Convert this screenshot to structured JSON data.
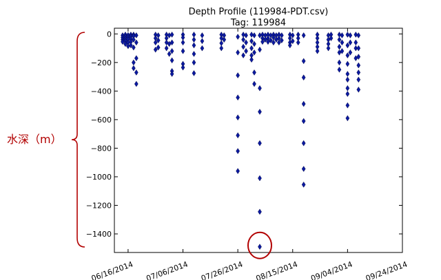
{
  "chart_data": {
    "type": "scatter",
    "title": "Depth Profile (119984-PDT.csv)",
    "subtitle": "Tag: 119984",
    "xlabel": "",
    "ylabel": "",
    "xlim": [
      "2014-06-11",
      "2014-09-24"
    ],
    "ylim": [
      -1530,
      40
    ],
    "x_ticks": [
      "06/16/2014",
      "07/06/2014",
      "07/26/2014",
      "08/15/2014",
      "09/04/2014",
      "09/24/2014"
    ],
    "y_ticks": [
      0,
      -200,
      -400,
      -600,
      -800,
      -1000,
      -1200,
      -1400
    ],
    "marker": "diamond",
    "marker_color": "#0b1aa0",
    "grid": false,
    "series": [
      {
        "points": [
          {
            "x": "2014-06-14",
            "y": -10
          },
          {
            "x": "2014-06-14",
            "y": -25
          },
          {
            "x": "2014-06-14",
            "y": -40
          },
          {
            "x": "2014-06-14",
            "y": -55
          },
          {
            "x": "2014-06-15",
            "y": -5
          },
          {
            "x": "2014-06-15",
            "y": -20
          },
          {
            "x": "2014-06-15",
            "y": -35
          },
          {
            "x": "2014-06-15",
            "y": -50
          },
          {
            "x": "2014-06-15",
            "y": -70
          },
          {
            "x": "2014-06-16",
            "y": -8
          },
          {
            "x": "2014-06-16",
            "y": -22
          },
          {
            "x": "2014-06-16",
            "y": -38
          },
          {
            "x": "2014-06-16",
            "y": -60
          },
          {
            "x": "2014-06-16",
            "y": -85
          },
          {
            "x": "2014-06-17",
            "y": -5
          },
          {
            "x": "2014-06-17",
            "y": -18
          },
          {
            "x": "2014-06-17",
            "y": -35
          },
          {
            "x": "2014-06-17",
            "y": -55
          },
          {
            "x": "2014-06-17",
            "y": -80
          },
          {
            "x": "2014-06-18",
            "y": -5
          },
          {
            "x": "2014-06-18",
            "y": -15
          },
          {
            "x": "2014-06-18",
            "y": -40
          },
          {
            "x": "2014-06-18",
            "y": -95
          },
          {
            "x": "2014-06-18",
            "y": -200
          },
          {
            "x": "2014-06-18",
            "y": -240
          },
          {
            "x": "2014-06-19",
            "y": -10
          },
          {
            "x": "2014-06-19",
            "y": -60
          },
          {
            "x": "2014-06-19",
            "y": -170
          },
          {
            "x": "2014-06-19",
            "y": -270
          },
          {
            "x": "2014-06-19",
            "y": -350
          },
          {
            "x": "2014-06-26",
            "y": -5
          },
          {
            "x": "2014-06-26",
            "y": -30
          },
          {
            "x": "2014-06-26",
            "y": -60
          },
          {
            "x": "2014-06-26",
            "y": -110
          },
          {
            "x": "2014-06-27",
            "y": -10
          },
          {
            "x": "2014-06-27",
            "y": -45
          },
          {
            "x": "2014-06-27",
            "y": -95
          },
          {
            "x": "2014-06-30",
            "y": -5
          },
          {
            "x": "2014-06-30",
            "y": -30
          },
          {
            "x": "2014-06-30",
            "y": -60
          },
          {
            "x": "2014-06-30",
            "y": -100
          },
          {
            "x": "2014-07-01",
            "y": -10
          },
          {
            "x": "2014-07-01",
            "y": -70
          },
          {
            "x": "2014-07-01",
            "y": -140
          },
          {
            "x": "2014-07-02",
            "y": -5
          },
          {
            "x": "2014-07-02",
            "y": -60
          },
          {
            "x": "2014-07-02",
            "y": -120
          },
          {
            "x": "2014-07-02",
            "y": -185
          },
          {
            "x": "2014-07-02",
            "y": -260
          },
          {
            "x": "2014-07-02",
            "y": -280
          },
          {
            "x": "2014-07-06",
            "y": -5
          },
          {
            "x": "2014-07-06",
            "y": -25
          },
          {
            "x": "2014-07-06",
            "y": -60
          },
          {
            "x": "2014-07-06",
            "y": -120
          },
          {
            "x": "2014-07-06",
            "y": -210
          },
          {
            "x": "2014-07-06",
            "y": -235
          },
          {
            "x": "2014-07-10",
            "y": -5
          },
          {
            "x": "2014-07-10",
            "y": -40
          },
          {
            "x": "2014-07-10",
            "y": -80
          },
          {
            "x": "2014-07-10",
            "y": -140
          },
          {
            "x": "2014-07-10",
            "y": -200
          },
          {
            "x": "2014-07-10",
            "y": -275
          },
          {
            "x": "2014-07-13",
            "y": -10
          },
          {
            "x": "2014-07-13",
            "y": -50
          },
          {
            "x": "2014-07-13",
            "y": -100
          },
          {
            "x": "2014-07-20",
            "y": -5
          },
          {
            "x": "2014-07-20",
            "y": -30
          },
          {
            "x": "2014-07-20",
            "y": -65
          },
          {
            "x": "2014-07-20",
            "y": -100
          },
          {
            "x": "2014-07-21",
            "y": -10
          },
          {
            "x": "2014-07-21",
            "y": -40
          },
          {
            "x": "2014-07-26",
            "y": -20
          },
          {
            "x": "2014-07-26",
            "y": -130
          },
          {
            "x": "2014-07-26",
            "y": -290
          },
          {
            "x": "2014-07-26",
            "y": -445
          },
          {
            "x": "2014-07-26",
            "y": -585
          },
          {
            "x": "2014-07-26",
            "y": -710
          },
          {
            "x": "2014-07-26",
            "y": -820
          },
          {
            "x": "2014-07-26",
            "y": -960
          },
          {
            "x": "2014-07-28",
            "y": -5
          },
          {
            "x": "2014-07-28",
            "y": -40
          },
          {
            "x": "2014-07-28",
            "y": -90
          },
          {
            "x": "2014-07-28",
            "y": -150
          },
          {
            "x": "2014-07-29",
            "y": -10
          },
          {
            "x": "2014-07-29",
            "y": -60
          },
          {
            "x": "2014-07-29",
            "y": -120
          },
          {
            "x": "2014-07-31",
            "y": -5
          },
          {
            "x": "2014-07-31",
            "y": -50
          },
          {
            "x": "2014-07-31",
            "y": -100
          },
          {
            "x": "2014-07-31",
            "y": -150
          },
          {
            "x": "2014-07-31",
            "y": -180
          },
          {
            "x": "2014-08-01",
            "y": -10
          },
          {
            "x": "2014-08-01",
            "y": -70
          },
          {
            "x": "2014-08-01",
            "y": -130
          },
          {
            "x": "2014-08-01",
            "y": -270
          },
          {
            "x": "2014-08-01",
            "y": -350
          },
          {
            "x": "2014-08-03",
            "y": -10
          },
          {
            "x": "2014-08-03",
            "y": -110
          },
          {
            "x": "2014-08-03",
            "y": -380
          },
          {
            "x": "2014-08-03",
            "y": -545
          },
          {
            "x": "2014-08-03",
            "y": -765
          },
          {
            "x": "2014-08-03",
            "y": -1010
          },
          {
            "x": "2014-08-03",
            "y": -1245
          },
          {
            "x": "2014-08-03",
            "y": -1490
          },
          {
            "x": "2014-08-04",
            "y": -5
          },
          {
            "x": "2014-08-04",
            "y": -30
          },
          {
            "x": "2014-08-04",
            "y": -55
          },
          {
            "x": "2014-08-05",
            "y": -10
          },
          {
            "x": "2014-08-05",
            "y": -40
          },
          {
            "x": "2014-08-06",
            "y": -5
          },
          {
            "x": "2014-08-06",
            "y": -30
          },
          {
            "x": "2014-08-06",
            "y": -55
          },
          {
            "x": "2014-08-07",
            "y": -10
          },
          {
            "x": "2014-08-07",
            "y": -45
          },
          {
            "x": "2014-08-08",
            "y": -5
          },
          {
            "x": "2014-08-08",
            "y": -25
          },
          {
            "x": "2014-08-08",
            "y": -60
          },
          {
            "x": "2014-08-09",
            "y": -10
          },
          {
            "x": "2014-08-09",
            "y": -40
          },
          {
            "x": "2014-08-10",
            "y": -5
          },
          {
            "x": "2014-08-10",
            "y": -30
          },
          {
            "x": "2014-08-10",
            "y": -60
          },
          {
            "x": "2014-08-11",
            "y": -10
          },
          {
            "x": "2014-08-11",
            "y": -45
          },
          {
            "x": "2014-08-14",
            "y": -5
          },
          {
            "x": "2014-08-14",
            "y": -30
          },
          {
            "x": "2014-08-14",
            "y": -60
          },
          {
            "x": "2014-08-14",
            "y": -80
          },
          {
            "x": "2014-08-15",
            "y": -10
          },
          {
            "x": "2014-08-15",
            "y": -50
          },
          {
            "x": "2014-08-17",
            "y": -5
          },
          {
            "x": "2014-08-17",
            "y": -30
          },
          {
            "x": "2014-08-17",
            "y": -60
          },
          {
            "x": "2014-08-19",
            "y": -10
          },
          {
            "x": "2014-08-19",
            "y": -190
          },
          {
            "x": "2014-08-19",
            "y": -305
          },
          {
            "x": "2014-08-19",
            "y": -490
          },
          {
            "x": "2014-08-19",
            "y": -610
          },
          {
            "x": "2014-08-19",
            "y": -765
          },
          {
            "x": "2014-08-19",
            "y": -945
          },
          {
            "x": "2014-08-19",
            "y": -1055
          },
          {
            "x": "2014-08-24",
            "y": -5
          },
          {
            "x": "2014-08-24",
            "y": -30
          },
          {
            "x": "2014-08-24",
            "y": -60
          },
          {
            "x": "2014-08-24",
            "y": -90
          },
          {
            "x": "2014-08-24",
            "y": -120
          },
          {
            "x": "2014-08-28",
            "y": -10
          },
          {
            "x": "2014-08-28",
            "y": -40
          },
          {
            "x": "2014-08-28",
            "y": -70
          },
          {
            "x": "2014-08-28",
            "y": -100
          },
          {
            "x": "2014-08-29",
            "y": -5
          },
          {
            "x": "2014-08-29",
            "y": -30
          },
          {
            "x": "2014-09-01",
            "y": -5
          },
          {
            "x": "2014-09-01",
            "y": -40
          },
          {
            "x": "2014-09-01",
            "y": -90
          },
          {
            "x": "2014-09-01",
            "y": -130
          },
          {
            "x": "2014-09-01",
            "y": -200
          },
          {
            "x": "2014-09-01",
            "y": -250
          },
          {
            "x": "2014-09-02",
            "y": -10
          },
          {
            "x": "2014-09-02",
            "y": -60
          },
          {
            "x": "2014-09-02",
            "y": -120
          },
          {
            "x": "2014-09-04",
            "y": -5
          },
          {
            "x": "2014-09-04",
            "y": -80
          },
          {
            "x": "2014-09-04",
            "y": -150
          },
          {
            "x": "2014-09-04",
            "y": -210
          },
          {
            "x": "2014-09-04",
            "y": -280
          },
          {
            "x": "2014-09-04",
            "y": -320
          },
          {
            "x": "2014-09-04",
            "y": -380
          },
          {
            "x": "2014-09-04",
            "y": -420
          },
          {
            "x": "2014-09-04",
            "y": -500
          },
          {
            "x": "2014-09-04",
            "y": -590
          },
          {
            "x": "2014-09-05",
            "y": -10
          },
          {
            "x": "2014-09-05",
            "y": -60
          },
          {
            "x": "2014-09-05",
            "y": -130
          },
          {
            "x": "2014-09-07",
            "y": -5
          },
          {
            "x": "2014-09-07",
            "y": -60
          },
          {
            "x": "2014-09-07",
            "y": -100
          },
          {
            "x": "2014-09-07",
            "y": -170
          },
          {
            "x": "2014-09-08",
            "y": -10
          },
          {
            "x": "2014-09-08",
            "y": -100
          },
          {
            "x": "2014-09-08",
            "y": -160
          },
          {
            "x": "2014-09-08",
            "y": -220
          },
          {
            "x": "2014-09-08",
            "y": -270
          },
          {
            "x": "2014-09-08",
            "y": -320
          },
          {
            "x": "2014-09-08",
            "y": -390
          }
        ]
      }
    ]
  },
  "annotation": {
    "label": "水深（m）",
    "color": "#b20000",
    "highlight_point": {
      "x": "2014-08-03",
      "y": -1490
    }
  }
}
